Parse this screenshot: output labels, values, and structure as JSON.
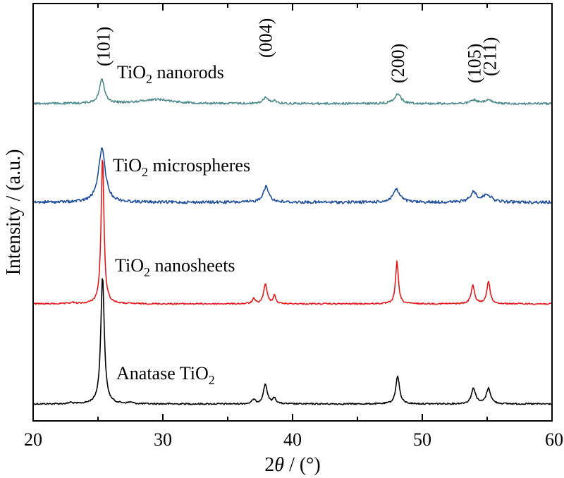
{
  "chart_data": {
    "type": "line",
    "title": "",
    "xlabel": {
      "pre": "2",
      "italic": "θ",
      "post": " / (°)"
    },
    "ylabel": "Intensity / (a.u.)",
    "xlim": [
      20,
      60
    ],
    "y_ticks_shown": false,
    "x_ticks": [
      20,
      30,
      40,
      50,
      60
    ],
    "x_minor_ticks": [
      25,
      35,
      45,
      55
    ],
    "grid": false,
    "legend": "none",
    "series": [
      {
        "name": "Anatase TiO2",
        "label_parts": {
          "base": "Anatase TiO",
          "sub": "2",
          "tail": ""
        },
        "color": "#000000",
        "offset": 0,
        "baseline": 2,
        "peaks": [
          {
            "x": 22.9,
            "h": 2,
            "w": 0.15
          },
          {
            "x": 25.35,
            "h": 182,
            "w": 0.16
          },
          {
            "x": 27.5,
            "h": 2,
            "w": 0.2
          },
          {
            "x": 37.0,
            "h": 6,
            "w": 0.15
          },
          {
            "x": 37.9,
            "h": 28,
            "w": 0.18
          },
          {
            "x": 38.6,
            "h": 8,
            "w": 0.15
          },
          {
            "x": 48.1,
            "h": 40,
            "w": 0.17
          },
          {
            "x": 53.95,
            "h": 22,
            "w": 0.2
          },
          {
            "x": 55.1,
            "h": 22,
            "w": 0.2
          }
        ]
      },
      {
        "name": "TiO2 nanosheets",
        "label_parts": {
          "base": "TiO",
          "sub": "2",
          "tail": " nanosheets"
        },
        "color": "#e31a1c",
        "offset": 142,
        "baseline": 2,
        "peaks": [
          {
            "x": 23.0,
            "h": 2,
            "w": 0.15
          },
          {
            "x": 25.35,
            "h": 210,
            "w": 0.13
          },
          {
            "x": 37.0,
            "h": 7,
            "w": 0.13
          },
          {
            "x": 37.9,
            "h": 28,
            "w": 0.16
          },
          {
            "x": 38.6,
            "h": 12,
            "w": 0.12
          },
          {
            "x": 48.05,
            "h": 60,
            "w": 0.13
          },
          {
            "x": 53.9,
            "h": 26,
            "w": 0.16
          },
          {
            "x": 55.1,
            "h": 32,
            "w": 0.15
          }
        ]
      },
      {
        "name": "TiO2 microspheres",
        "label_parts": {
          "base": "TiO",
          "sub": "2",
          "tail": " microspheres"
        },
        "color": "#1f4e9e",
        "offset": 286,
        "baseline": 4,
        "peaks": [
          {
            "x": 25.3,
            "h": 76,
            "w": 0.32
          },
          {
            "x": 37.95,
            "h": 22,
            "w": 0.28
          },
          {
            "x": 48.0,
            "h": 18,
            "w": 0.33
          },
          {
            "x": 53.95,
            "h": 14,
            "w": 0.3
          },
          {
            "x": 55.0,
            "h": 11,
            "w": 0.38
          }
        ]
      },
      {
        "name": "TiO2 nanorods",
        "label_parts": {
          "base": "TiO",
          "sub": "2",
          "tail": " nanorods"
        },
        "color": "#4f8a8b",
        "offset": 426,
        "baseline": 3,
        "peaks": [
          {
            "x": 25.3,
            "h": 34,
            "w": 0.24
          },
          {
            "x": 29.5,
            "h": 6,
            "w": 1.5
          },
          {
            "x": 37.9,
            "h": 8,
            "w": 0.25
          },
          {
            "x": 38.6,
            "h": 4,
            "w": 0.2
          },
          {
            "x": 48.1,
            "h": 14,
            "w": 0.3
          },
          {
            "x": 54.0,
            "h": 5,
            "w": 0.3
          },
          {
            "x": 55.1,
            "h": 5,
            "w": 0.3
          }
        ]
      }
    ],
    "peak_labels": [
      {
        "text": "(101)",
        "x": 25.4
      },
      {
        "text": "(004)",
        "x": 37.9
      },
      {
        "text": "(200)",
        "x": 48.1
      },
      {
        "text": "(105)",
        "x": 54.0
      },
      {
        "text": "(211)",
        "x": 55.2
      }
    ]
  }
}
